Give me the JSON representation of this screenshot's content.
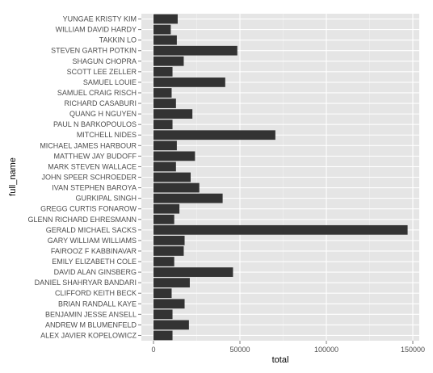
{
  "chart_data": {
    "type": "bar",
    "orientation": "horizontal",
    "xlabel": "total",
    "ylabel": "full_name",
    "xlim": [
      0,
      155000
    ],
    "x_ticks": [
      0,
      50000,
      100000,
      150000
    ],
    "x_tick_labels": [
      "0",
      "50000",
      "100000",
      "150000"
    ],
    "grid": true,
    "colors": {
      "panel": "#e5e5e5",
      "grid_major": "#ffffff",
      "grid_minor": "#f2f2f2",
      "bar": "#333333",
      "tick_text": "#4d4d4d",
      "tick_mark": "#7f7f7f"
    },
    "categories": [
      "YUNGAE KRISTY KIM",
      "WILLIAM DAVID HARDY",
      "TAKKIN LO",
      "STEVEN GARTH POTKIN",
      "SHAGUN CHOPRA",
      "SCOTT LEE ZELLER",
      "SAMUEL LOUIE",
      "SAMUEL CRAIG RISCH",
      "RICHARD CASABURI",
      "QUANG H NGUYEN",
      "PAUL N BARKOPOULOS",
      "MITCHELL NIDES",
      "MICHAEL JAMES HARBOUR",
      "MATTHEW JAY BUDOFF",
      "MARK STEVEN WALLACE",
      "JOHN SPEER SCHROEDER",
      "IVAN STEPHEN BAROYA",
      "GURKIPAL SINGH",
      "GREGG CURTIS FONAROW",
      "GLENN RICHARD EHRESMANN",
      "GERALD MICHAEL SACKS",
      "GARY WILLIAM WILLIAMS",
      "FAIROOZ F KABBINAVAR",
      "EMILY ELIZABETH COLE",
      "DAVID ALAN GINSBERG",
      "DANIEL SHAHRYAR BANDARI",
      "CLIFFORD KEITH BECK",
      "BRIAN RANDALL KAYE",
      "BENJAMIN JESSE ANSELL",
      "ANDREW M BLUMENFELD",
      "ALEX JAVIER KOPELOWICZ"
    ],
    "values": [
      14000,
      10000,
      13500,
      48500,
      17500,
      11000,
      41500,
      10500,
      13000,
      22500,
      11000,
      70500,
      13500,
      24000,
      13000,
      21500,
      26500,
      40000,
      15000,
      12000,
      147000,
      18000,
      17500,
      12000,
      46000,
      21000,
      10500,
      18000,
      11000,
      20500,
      11000
    ]
  }
}
